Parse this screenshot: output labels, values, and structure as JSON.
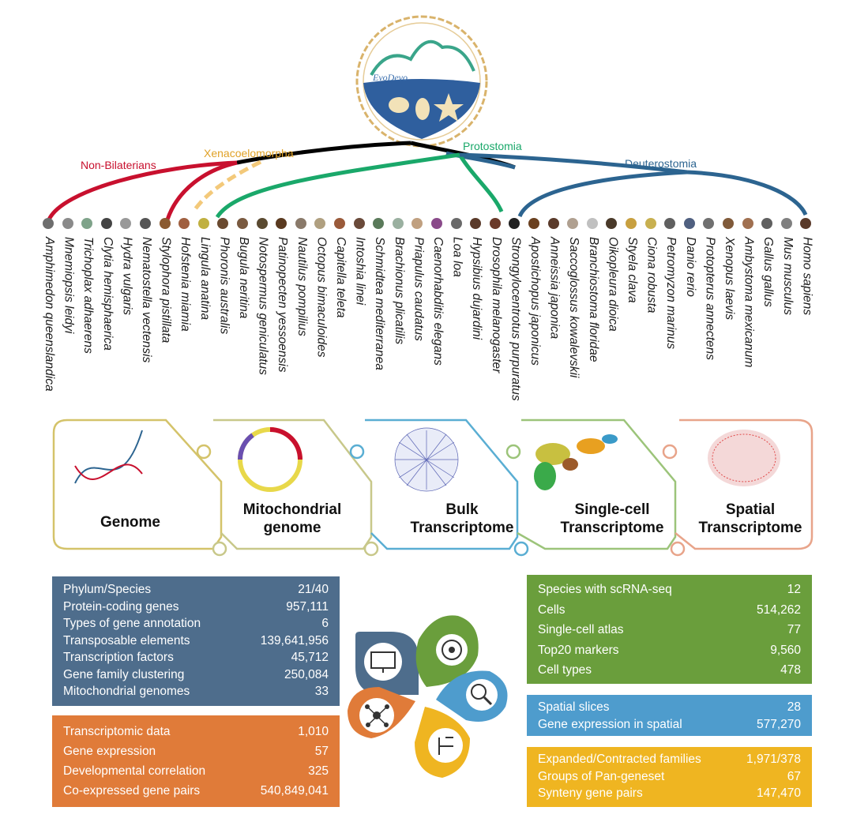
{
  "clades": {
    "non_bilaterians": {
      "label": "Non-Bilaterians",
      "color": "#c8102e"
    },
    "xenacoelomorpha": {
      "label": "Xenacoelomorpha",
      "color": "#f0b63c"
    },
    "protostomia": {
      "label": "Protostomia",
      "color": "#1aa86a"
    },
    "deuterostomia": {
      "label": "Deuterostomia",
      "color": "#2c6490"
    }
  },
  "species": [
    "Amphimedon queenslandica",
    "Mnemiopsis leidyi",
    "Trichoplax adhaerens",
    "Clytia hemisphaerica",
    "Hydra vulgaris",
    "Nematostella vectensis",
    "Stylophora pistillata",
    "Hofstenia miamia",
    "Lingula anatina",
    "Phoronis australis",
    "Bugula neritina",
    "Notospermus geniculatus",
    "Patinopecten yessoensis",
    "Nautilus pompilius",
    "Octopus bimaculoides",
    "Capitella teleta",
    "Intoshia linei",
    "Schmidtea mediterranea",
    "Brachionus plicatilis",
    "Priapulus caudatus",
    "Caenorhabditis elegans",
    "Loa loa",
    "Hypsibius dujardini",
    "Drosophila melanogaster",
    "Strongylocentrotus purpuratus",
    "Apostichopus japonicus",
    "Anneissia japonica",
    "Saccoglossus kowalevskii",
    "Branchiostoma floridae",
    "Oikopleura dioica",
    "Styela clava",
    "Ciona robusta",
    "Petromyzon marinus",
    "Danio rerio",
    "Protopterus annectens",
    "Xenopus laevis",
    "Ambystoma mexicanum",
    "Gallus gallus",
    "Mus musculus",
    "Homo sapiens"
  ],
  "logo": {
    "text": "EvoDevo"
  },
  "cards": [
    {
      "line1": "Genome",
      "line2": "",
      "color": "#d4c36a"
    },
    {
      "line1": "Mitochondrial",
      "line2": "genome",
      "color": "#c8c88a"
    },
    {
      "line1": "Bulk",
      "line2": "Transcriptome",
      "color": "#5aaed3"
    },
    {
      "line1": "Single-cell",
      "line2": "Transcriptome",
      "color": "#9cc47a"
    },
    {
      "line1": "Spatial",
      "line2": "Transcriptome",
      "color": "#e8a48a"
    }
  ],
  "panels": {
    "genome": {
      "color": "#4e6d8c",
      "rows": [
        {
          "label": "Phylum/Species",
          "value": "21/40"
        },
        {
          "label": "Protein-coding genes",
          "value": "957,111"
        },
        {
          "label": "Types of gene annotation",
          "value": "6"
        },
        {
          "label": "Transposable elements",
          "value": "139,641,956"
        },
        {
          "label": "Transcription factors",
          "value": "45,712"
        },
        {
          "label": "Gene family clustering",
          "value": "250,084"
        },
        {
          "label": "Mitochondrial genomes",
          "value": "33"
        }
      ]
    },
    "transcriptome": {
      "color": "#e07b39",
      "rows": [
        {
          "label": "Transcriptomic data",
          "value": "1,010"
        },
        {
          "label": "Gene expression",
          "value": "57"
        },
        {
          "label": "Developmental correlation",
          "value": "325"
        },
        {
          "label": "Co-expressed gene pairs",
          "value": "540,849,041"
        }
      ]
    },
    "single_cell": {
      "color": "#6a9e3c",
      "rows": [
        {
          "label": "Species with scRNA-seq",
          "value": "12"
        },
        {
          "label": "Cells",
          "value": "514,262"
        },
        {
          "label": "Single-cell atlas",
          "value": "77"
        },
        {
          "label": "Top20 markers",
          "value": "9,560"
        },
        {
          "label": "Cell types",
          "value": "478"
        }
      ]
    },
    "spatial": {
      "color": "#4e9ccd",
      "rows": [
        {
          "label": "Spatial slices",
          "value": "28"
        },
        {
          "label": "Gene expression in spatial",
          "value": "577,270"
        }
      ]
    },
    "comparative": {
      "color": "#efb521",
      "rows": [
        {
          "label": "Expanded/Contracted families",
          "value": "1,971/378"
        },
        {
          "label": "Groups of Pan-geneset",
          "value": "67"
        },
        {
          "label": "Synteny gene pairs",
          "value": "147,470"
        }
      ]
    }
  },
  "petals": [
    {
      "icon": "monitor-icon",
      "color": "#4e6d8c"
    },
    {
      "icon": "cell-icon",
      "color": "#6a9e3c"
    },
    {
      "icon": "magnifier-icon",
      "color": "#4e9ccd"
    },
    {
      "icon": "tree-icon",
      "color": "#efb521"
    },
    {
      "icon": "network-icon",
      "color": "#e07b39"
    }
  ]
}
